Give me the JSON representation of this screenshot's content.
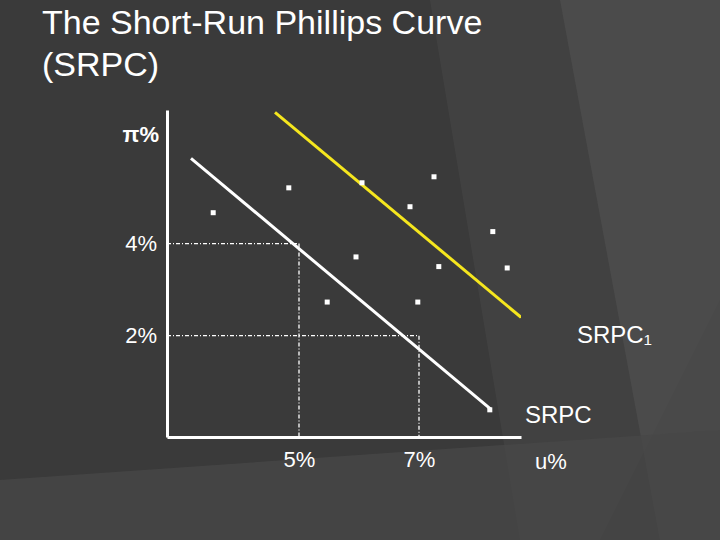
{
  "chart_data": {
    "type": "line",
    "title": "The Short-Run Phillips Curve (SRPC)",
    "x_label": "u%",
    "y_label": "π%",
    "xlim": [
      2.8,
      8.7
    ],
    "ylim": [
      -0.2,
      6.9
    ],
    "xticks": [
      {
        "value": 5,
        "label": "5%"
      },
      {
        "value": 7,
        "label": "7%"
      }
    ],
    "yticks": [
      {
        "value": 2,
        "label": "2%"
      },
      {
        "value": 4,
        "label": "4%"
      }
    ],
    "grid": false,
    "guides": [
      {
        "x": 5,
        "y": 4
      },
      {
        "x": 7,
        "y": 2
      }
    ],
    "series": [
      {
        "name": "SRPC",
        "type": "line",
        "color": "#ffffff",
        "line_style": "solid",
        "x": [
          3.2,
          8.2
        ],
        "values": [
          5.85,
          0.4
        ]
      },
      {
        "name": "SRPC₁",
        "type": "line",
        "color": "#f5e61e",
        "line_style": "solid",
        "x": [
          4.6,
          8.7
        ],
        "values": [
          6.85,
          2.4
        ]
      },
      {
        "type": "scatter",
        "color": "#ffffff",
        "marker": "square",
        "x": [
          3.57,
          4.83,
          6.05,
          7.25,
          6.85,
          5.95,
          7.33,
          8.23,
          8.47,
          5.47,
          6.98,
          8.18
        ],
        "values": [
          4.67,
          5.21,
          5.32,
          5.45,
          4.8,
          3.71,
          3.5,
          4.26,
          3.47,
          2.73,
          2.73,
          0.39
        ]
      }
    ]
  }
}
